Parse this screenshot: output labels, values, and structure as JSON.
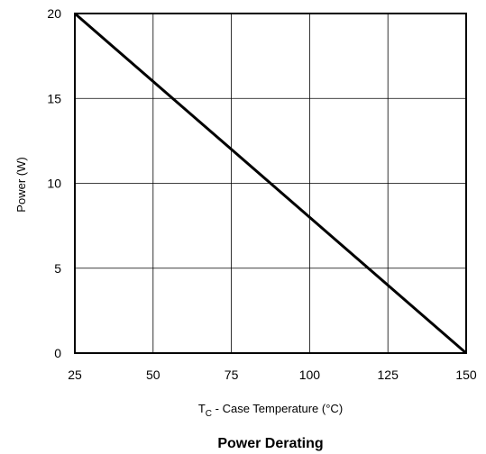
{
  "chart_data": {
    "type": "line",
    "title": "Power Derating",
    "xlabel": {
      "main": "T",
      "subscript": "C",
      "rest": " - Case Temperature (°C)"
    },
    "ylabel": "Power (W)",
    "xlim": [
      25,
      150
    ],
    "ylim": [
      0,
      20
    ],
    "xticks": [
      "25",
      "50",
      "75",
      "100",
      "125",
      "150"
    ],
    "yticks": [
      "0",
      "5",
      "10",
      "15",
      "20"
    ],
    "grid": true,
    "line_color": "#000000",
    "series": [
      {
        "x": [
          25,
          150
        ],
        "y": [
          20,
          0
        ]
      }
    ]
  }
}
